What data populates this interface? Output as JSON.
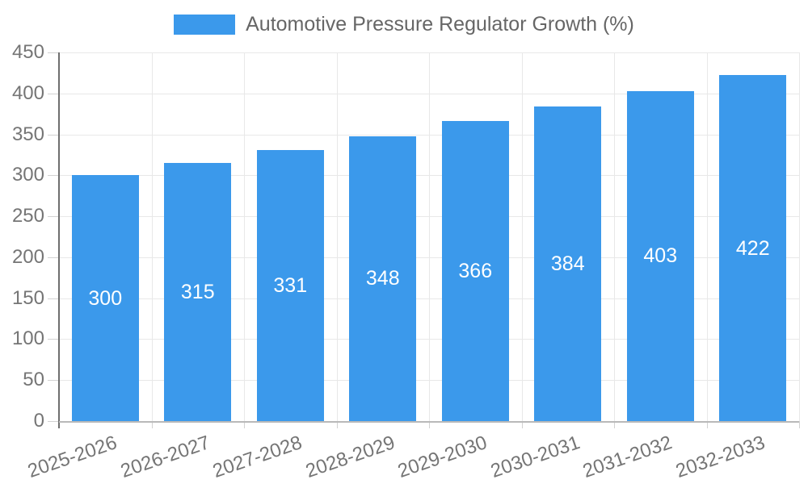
{
  "legend": {
    "label": "Automotive Pressure Regulator Growth (%)"
  },
  "chart_data": {
    "type": "bar",
    "title": "Automotive Pressure Regulator Growth (%)",
    "categories": [
      "2025-2026",
      "2026-2027",
      "2027-2028",
      "2028-2029",
      "2029-2030",
      "2030-2031",
      "2031-2032",
      "2032-2033"
    ],
    "values": [
      300,
      315,
      331,
      348,
      366,
      384,
      403,
      422
    ],
    "bar_labels": [
      "300",
      "315",
      "331",
      "348",
      "366",
      "384",
      "403",
      "422"
    ],
    "xlabel": "",
    "ylabel": "",
    "ylim": [
      0,
      450
    ],
    "yticks": [
      0,
      50,
      100,
      150,
      200,
      250,
      300,
      350,
      400,
      450
    ],
    "grid": true,
    "legend_position": "top",
    "x_label_rotation_deg": -19
  },
  "colors": {
    "bar": "#3B99EB",
    "bar_value_text": "#FFFFFF",
    "legend_text": "#666666",
    "axis_text": "#757575",
    "gridline": "#E8E8E8",
    "tick": "#D2D2D2",
    "y_axis_line": "#6F6F6F",
    "x_axis_line": "#B9B9B9"
  }
}
